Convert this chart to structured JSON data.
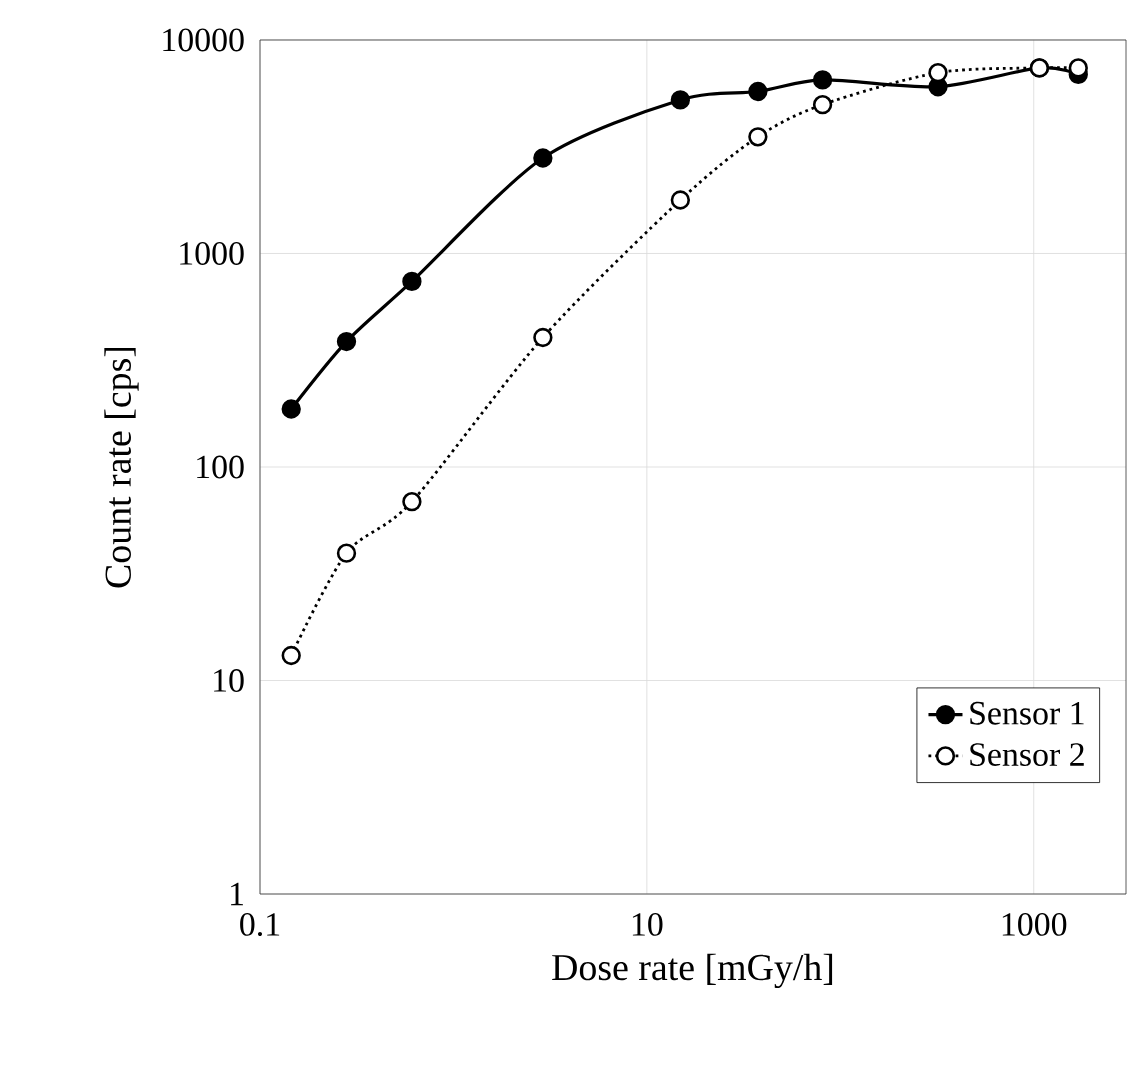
{
  "chart_data": {
    "type": "line",
    "xlabel": "Dose rate [mGy/h]",
    "ylabel": "Count rate [cps]",
    "log": "xy",
    "grid": true,
    "legend": "bottom right",
    "marker": "circle",
    "xlim": [
      0.1,
      3000
    ],
    "xticks": [
      0.1,
      10,
      1000
    ],
    "ylim": [
      1,
      10000
    ],
    "yticks": [
      1,
      10,
      100,
      1000,
      10000
    ],
    "series": [
      {
        "name": "Sensor 1",
        "color": "#000000",
        "line_style": "solid",
        "x": [
          0.145,
          0.28,
          0.61,
          2.9,
          14.9,
          37.5,
          81,
          320,
          1070,
          1700
        ],
        "values": [
          187,
          387,
          740,
          2800,
          5240,
          5740,
          6500,
          6040,
          7400,
          6900
        ]
      },
      {
        "name": "Sensor 2",
        "color": "#000000",
        "line_style": "dotted",
        "x": [
          0.145,
          0.28,
          0.61,
          2.9,
          14.9,
          37.5,
          81,
          320,
          1070,
          1700
        ],
        "values": [
          13.1,
          39.5,
          68.8,
          404,
          1780,
          3520,
          4980,
          7030,
          7400,
          7400
        ]
      }
    ]
  }
}
